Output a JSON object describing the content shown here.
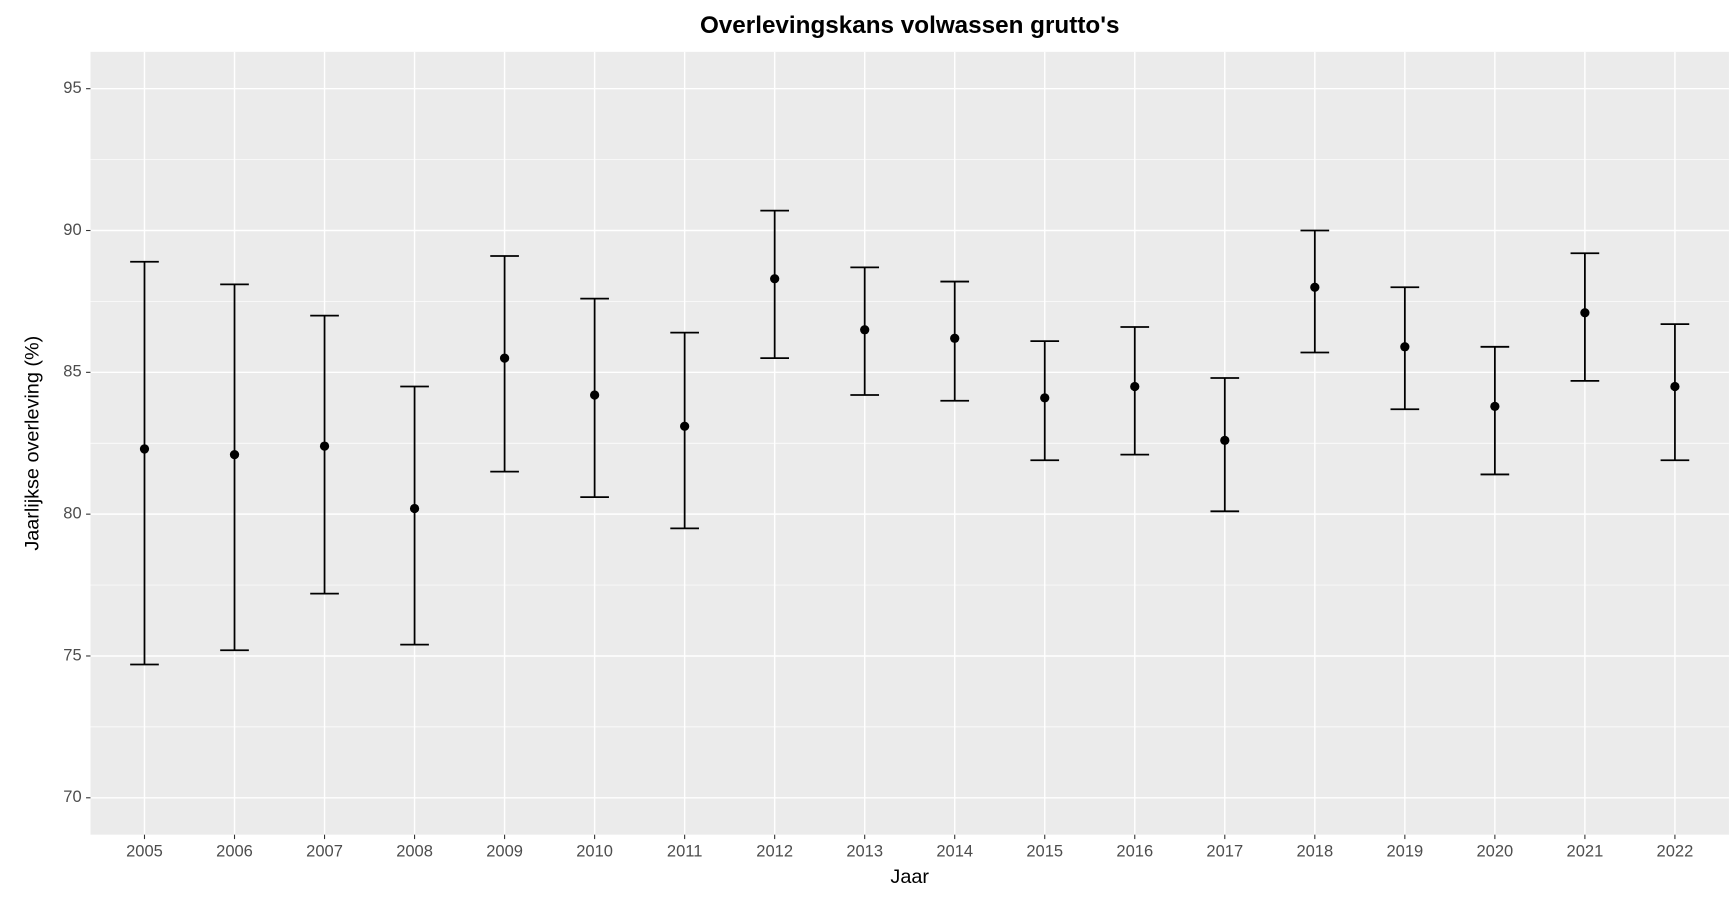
{
  "chart_data": {
    "type": "errorbar",
    "title": "Overlevingskans volwassen grutto's",
    "x_label": "Jaar",
    "y_label": "Jaarlijkse overleving (%)",
    "categories": [
      "2005",
      "2006",
      "2007",
      "2008",
      "2009",
      "2010",
      "2011",
      "2012",
      "2013",
      "2014",
      "2015",
      "2016",
      "2017",
      "2018",
      "2019",
      "2020",
      "2021",
      "2022"
    ],
    "series": [
      {
        "color": "#000000",
        "values": [
          82.3,
          82.1,
          82.4,
          80.2,
          85.5,
          84.2,
          83.1,
          88.3,
          86.5,
          86.2,
          84.1,
          84.5,
          82.6,
          88.0,
          85.9,
          83.8,
          87.1,
          84.5
        ],
        "lower": [
          74.7,
          75.2,
          77.2,
          75.4,
          81.5,
          80.6,
          79.5,
          85.5,
          84.2,
          84.0,
          81.9,
          82.1,
          80.1,
          85.7,
          83.7,
          81.4,
          84.7,
          81.9
        ],
        "upper": [
          88.9,
          88.1,
          87.0,
          84.5,
          89.1,
          87.6,
          86.4,
          90.7,
          88.7,
          88.2,
          86.1,
          86.6,
          84.8,
          90.0,
          88.0,
          85.9,
          89.2,
          86.7
        ]
      }
    ],
    "ylim": [
      68.7,
      96.3
    ],
    "yticks": [
      70,
      75,
      80,
      85,
      90,
      95
    ],
    "minor_yticks": [
      72.5,
      77.5,
      82.5,
      87.5,
      92.5
    ],
    "grid": true,
    "panel_color": "#ebebeb"
  }
}
